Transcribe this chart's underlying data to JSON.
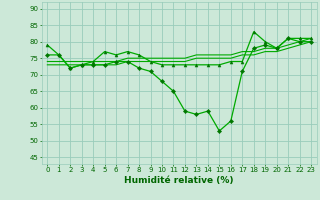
{
  "x": [
    0,
    1,
    2,
    3,
    4,
    5,
    6,
    7,
    8,
    9,
    10,
    11,
    12,
    13,
    14,
    15,
    16,
    17,
    18,
    19,
    20,
    21,
    22,
    23
  ],
  "line_upper": [
    79,
    76,
    72,
    73,
    74,
    77,
    76,
    77,
    76,
    74,
    73,
    73,
    73,
    73,
    73,
    73,
    74,
    74,
    83,
    80,
    78,
    81,
    81,
    81
  ],
  "line_dip": [
    76,
    76,
    72,
    73,
    73,
    73,
    74,
    74,
    72,
    71,
    68,
    65,
    59,
    58,
    59,
    53,
    56,
    71,
    78,
    79,
    78,
    81,
    80,
    80
  ],
  "line_smooth1": [
    73,
    73,
    73,
    73,
    73,
    73,
    73,
    74,
    74,
    74,
    74,
    74,
    74,
    75,
    75,
    75,
    75,
    76,
    76,
    77,
    77,
    78,
    79,
    80
  ],
  "line_smooth2": [
    74,
    74,
    74,
    74,
    74,
    74,
    74,
    75,
    75,
    75,
    75,
    75,
    75,
    76,
    76,
    76,
    76,
    77,
    77,
    78,
    78,
    79,
    80,
    81
  ],
  "bg_color": "#cce8d8",
  "grid_major_color": "#99ccbb",
  "grid_minor_color": "#bbddcc",
  "line_color": "#00aa00",
  "marker_color": "#007700",
  "ylabel_ticks": [
    45,
    50,
    55,
    60,
    65,
    70,
    75,
    80,
    85,
    90
  ],
  "ylim": [
    43,
    92
  ],
  "xlim": [
    -0.5,
    23.5
  ],
  "xlabel": "Humidité relative (%)",
  "xlabel_color": "#006600",
  "tick_color": "#006600",
  "tick_fontsize": 5.0,
  "xlabel_fontsize": 6.5
}
